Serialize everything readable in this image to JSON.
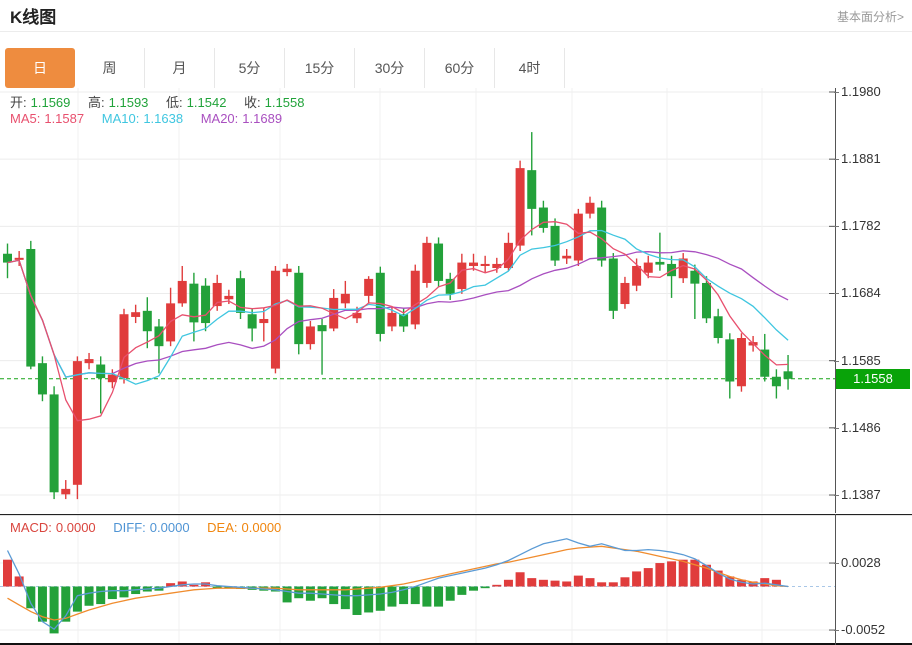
{
  "header": {
    "title": "K线图",
    "analysis_link": "基本面分析>"
  },
  "tabs": {
    "items": [
      {
        "label": "日",
        "active": true
      },
      {
        "label": "周",
        "active": false
      },
      {
        "label": "月",
        "active": false
      },
      {
        "label": "5分",
        "active": false
      },
      {
        "label": "15分",
        "active": false
      },
      {
        "label": "30分",
        "active": false
      },
      {
        "label": "60分",
        "active": false
      },
      {
        "label": "4时",
        "active": false
      }
    ]
  },
  "main_panel": {
    "ohlc": {
      "open_label": "开:",
      "open": "1.1569",
      "high_label": "高:",
      "high": "1.1593",
      "low_label": "低:",
      "low": "1.1542",
      "close_label": "收:",
      "close": "1.1558"
    },
    "ma": {
      "ma5_label": "MA5:",
      "ma5": "1.1587",
      "ma10_label": "MA10:",
      "ma10": "1.1638",
      "ma20_label": "MA20:",
      "ma20": "1.1689"
    },
    "y_ticks": [
      "1.1980",
      "1.1881",
      "1.1782",
      "1.1684",
      "1.1585",
      "1.1486",
      "1.1387"
    ],
    "last_price": "1.1558"
  },
  "macd_panel": {
    "macd_label": "MACD:",
    "macd": "0.0000",
    "diff_label": "DIFF:",
    "diff": "0.0000",
    "dea_label": "DEA:",
    "dea": "0.0000",
    "y_ticks": [
      "0.0028",
      "-0.0052"
    ]
  },
  "colors": {
    "up": "#e03c3c",
    "down": "#23a13a",
    "ma5": "#e8506e",
    "ma10": "#3fc6e0",
    "ma20": "#a94fc0",
    "diff_line": "#5b9bd5",
    "dea_line": "#f08c2e",
    "price_line": "#17a317",
    "badge_bg": "#09a309",
    "tab_active_bg": "#ee8c3f",
    "grid": "#ececec",
    "zero_dash": "#a9c7e7"
  },
  "chart_data": [
    {
      "type": "candlestick",
      "title": "K线图 (daily candles, values estimated from axis)",
      "ylim": [
        1.1387,
        1.198
      ],
      "y_ticks": [
        1.198,
        1.1881,
        1.1782,
        1.1684,
        1.1585,
        1.1486,
        1.1387
      ],
      "last_price": 1.1558,
      "up_color_meaning": "red = close >= open, green = close < open",
      "moving_average_labels": {
        "MA5": 1.1587,
        "MA10": 1.1638,
        "MA20": 1.1689
      },
      "ohlc": [
        [
          1.1742,
          1.1757,
          1.1706,
          1.1729
        ],
        [
          1.1733,
          1.1746,
          1.1724,
          1.1736
        ],
        [
          1.1749,
          1.1761,
          1.1572,
          1.1576
        ],
        [
          1.1581,
          1.1591,
          1.1525,
          1.1535
        ],
        [
          1.1535,
          1.1547,
          1.1381,
          1.1391
        ],
        [
          1.1388,
          1.1409,
          1.1381,
          1.1396
        ],
        [
          1.1402,
          1.1591,
          1.1381,
          1.1584
        ],
        [
          1.1581,
          1.1596,
          1.1572,
          1.1587
        ],
        [
          1.1579,
          1.1591,
          1.1507,
          1.1559
        ],
        [
          1.1553,
          1.1572,
          1.1544,
          1.1564
        ],
        [
          1.1559,
          1.1661,
          1.1551,
          1.1653
        ],
        [
          1.1649,
          1.1667,
          1.164,
          1.1656
        ],
        [
          1.1658,
          1.1678,
          1.1603,
          1.1628
        ],
        [
          1.1635,
          1.1646,
          1.1566,
          1.1606
        ],
        [
          1.1613,
          1.1692,
          1.1606,
          1.1669
        ],
        [
          1.1669,
          1.1724,
          1.1664,
          1.1702
        ],
        [
          1.1698,
          1.1714,
          1.1613,
          1.1641
        ],
        [
          1.1695,
          1.1706,
          1.1628,
          1.164
        ],
        [
          1.1665,
          1.1711,
          1.1658,
          1.1699
        ],
        [
          1.1675,
          1.1689,
          1.1668,
          1.168
        ],
        [
          1.1706,
          1.1717,
          1.1646,
          1.1655
        ],
        [
          1.1653,
          1.1662,
          1.1613,
          1.1632
        ],
        [
          1.164,
          1.1662,
          1.1613,
          1.1646
        ],
        [
          1.1573,
          1.1724,
          1.1566,
          1.1717
        ],
        [
          1.1715,
          1.1727,
          1.1709,
          1.172
        ],
        [
          1.1714,
          1.1724,
          1.1594,
          1.1609
        ],
        [
          1.1609,
          1.1643,
          1.1601,
          1.1635
        ],
        [
          1.1637,
          1.1646,
          1.1564,
          1.1628
        ],
        [
          1.1632,
          1.169,
          1.1628,
          1.1677
        ],
        [
          1.1669,
          1.1702,
          1.1662,
          1.1683
        ],
        [
          1.1647,
          1.1664,
          1.164,
          1.1655
        ],
        [
          1.168,
          1.1709,
          1.1669,
          1.1705
        ],
        [
          1.1714,
          1.1723,
          1.1613,
          1.1624
        ],
        [
          1.1635,
          1.1664,
          1.1628,
          1.1655
        ],
        [
          1.1653,
          1.1662,
          1.1627,
          1.1635
        ],
        [
          1.1638,
          1.1726,
          1.1631,
          1.1717
        ],
        [
          1.1699,
          1.1767,
          1.1692,
          1.1758
        ],
        [
          1.1757,
          1.1766,
          1.1693,
          1.1702
        ],
        [
          1.1705,
          1.1714,
          1.1674,
          1.1683
        ],
        [
          1.169,
          1.1742,
          1.1683,
          1.1729
        ],
        [
          1.1724,
          1.1742,
          1.1717,
          1.1729
        ],
        [
          1.1724,
          1.1739,
          1.1715,
          1.1727
        ],
        [
          1.1721,
          1.1736,
          1.1714,
          1.1727
        ],
        [
          1.1721,
          1.1773,
          1.1717,
          1.1758
        ],
        [
          1.1754,
          1.1879,
          1.1746,
          1.1868
        ],
        [
          1.1865,
          1.1921,
          1.1769,
          1.1808
        ],
        [
          1.181,
          1.182,
          1.1773,
          1.178
        ],
        [
          1.1783,
          1.1794,
          1.1724,
          1.1732
        ],
        [
          1.1735,
          1.1749,
          1.1727,
          1.1739
        ],
        [
          1.1732,
          1.1808,
          1.1724,
          1.1801
        ],
        [
          1.1801,
          1.1826,
          1.1794,
          1.1817
        ],
        [
          1.181,
          1.182,
          1.1723,
          1.1732
        ],
        [
          1.1735,
          1.1743,
          1.1646,
          1.1658
        ],
        [
          1.1668,
          1.1708,
          1.1661,
          1.1699
        ],
        [
          1.1695,
          1.1735,
          1.1687,
          1.1724
        ],
        [
          1.1714,
          1.1739,
          1.1706,
          1.1729
        ],
        [
          1.173,
          1.1773,
          1.1717,
          1.1726
        ],
        [
          1.1727,
          1.1739,
          1.1677,
          1.1709
        ],
        [
          1.1706,
          1.1743,
          1.1699,
          1.1735
        ],
        [
          1.1717,
          1.1726,
          1.1646,
          1.1698
        ],
        [
          1.1699,
          1.1709,
          1.164,
          1.1647
        ],
        [
          1.165,
          1.1661,
          1.161,
          1.1618
        ],
        [
          1.1616,
          1.1625,
          1.1529,
          1.1554
        ],
        [
          1.1547,
          1.1625,
          1.1539,
          1.1618
        ],
        [
          1.1607,
          1.1621,
          1.1598,
          1.1612
        ],
        [
          1.1601,
          1.1624,
          1.1554,
          1.1561
        ],
        [
          1.1561,
          1.1572,
          1.1529,
          1.1547
        ],
        [
          1.1569,
          1.1593,
          1.1542,
          1.1558
        ]
      ]
    },
    {
      "type": "bar",
      "title": "MACD (12,26,9) — histogram with DIFF/DEA lines, values estimated",
      "ylim": [
        -0.0062,
        0.0046
      ],
      "y_ticks": [
        0.0028,
        -0.0052
      ],
      "histogram": [
        0.0032,
        0.0012,
        -0.0026,
        -0.0042,
        -0.0056,
        -0.0042,
        -0.003,
        -0.0023,
        -0.0021,
        -0.0015,
        -0.0013,
        -0.0009,
        -0.0006,
        -0.0005,
        0.0004,
        0.0006,
        0.0002,
        0.0005,
        -0.0002,
        -0.0002,
        -0.0003,
        -0.0004,
        -0.0005,
        -0.0006,
        -0.0019,
        -0.0014,
        -0.0017,
        -0.0014,
        -0.0021,
        -0.0027,
        -0.0034,
        -0.0031,
        -0.0029,
        -0.0024,
        -0.0021,
        -0.0021,
        -0.0024,
        -0.0024,
        -0.0017,
        -0.001,
        -0.0005,
        -0.0002,
        0.0002,
        0.0008,
        0.0017,
        0.001,
        0.0008,
        0.0007,
        0.0006,
        0.0013,
        0.001,
        0.0005,
        0.0005,
        0.0011,
        0.0018,
        0.0022,
        0.0028,
        0.003,
        0.0032,
        0.0032,
        0.0026,
        0.0019,
        0.0012,
        0.0008,
        0.0006,
        0.001,
        0.0008,
        0.0
      ],
      "diff": [
        0.0043,
        0.0015,
        -0.002,
        -0.0042,
        -0.0051,
        -0.0035,
        -0.0011,
        -0.0008,
        -0.0006,
        -0.0005,
        -0.0005,
        -0.0004,
        -0.0003,
        -0.0002,
        0.0,
        0.0002,
        0.0003,
        0.0003,
        0.0001,
        0.0,
        -0.0001,
        -0.0002,
        -0.0003,
        -0.0004,
        -0.0006,
        -0.0008,
        -0.0008,
        -0.0009,
        -0.001,
        -0.0011,
        -0.0011,
        -0.001,
        -0.0009,
        -0.0007,
        -0.0004,
        0.0,
        0.0005,
        0.001,
        0.0013,
        0.0016,
        0.0019,
        0.0022,
        0.0026,
        0.0031,
        0.0038,
        0.0045,
        0.0051,
        0.0054,
        0.0057,
        0.0052,
        0.0048,
        0.0051,
        0.0047,
        0.0043,
        0.0043,
        0.0044,
        0.0043,
        0.0041,
        0.0038,
        0.0033,
        0.0025,
        0.0016,
        0.0009,
        0.0005,
        0.0003,
        0.0004,
        0.0002,
        0.0
      ],
      "dea": [
        -0.0014,
        -0.0022,
        -0.003,
        -0.0036,
        -0.004,
        -0.0038,
        -0.0033,
        -0.0028,
        -0.0024,
        -0.002,
        -0.0017,
        -0.0014,
        -0.0012,
        -0.001,
        -0.0008,
        -0.0006,
        -0.0004,
        -0.0003,
        -0.0002,
        -0.0002,
        -0.0002,
        -0.0002,
        -0.0002,
        -0.0002,
        -0.0003,
        -0.0004,
        -0.0004,
        -0.0004,
        -0.0004,
        -0.0004,
        -0.0003,
        -0.0002,
        -0.0001,
        0.0001,
        0.0003,
        0.0006,
        0.0009,
        0.0012,
        0.0015,
        0.0018,
        0.0021,
        0.0024,
        0.0027,
        0.0029,
        0.0032,
        0.0035,
        0.0038,
        0.0041,
        0.0044,
        0.0046,
        0.0047,
        0.0048,
        0.0046,
        0.0044,
        0.0042,
        0.0039,
        0.0036,
        0.0033,
        0.003,
        0.0026,
        0.0022,
        0.0017,
        0.0012,
        0.0008,
        0.0005,
        0.0003,
        0.0001,
        0.0
      ]
    }
  ]
}
